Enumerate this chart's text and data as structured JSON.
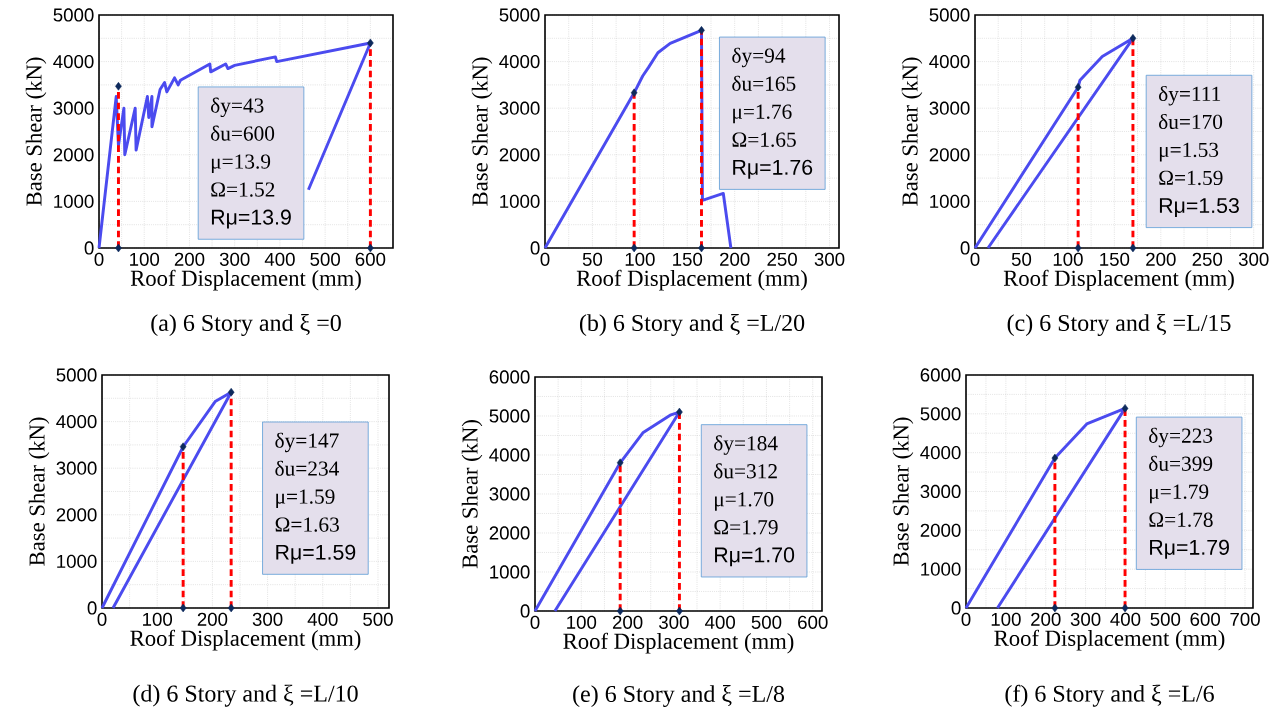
{
  "chart_data": [
    {
      "type": "line",
      "title": "(a) 6 Story and ξ =0",
      "xlabel": "Roof Displacement (mm)",
      "ylabel": "Base Shear (kN)",
      "xlim": [
        0,
        650
      ],
      "ylim": [
        0,
        5000
      ],
      "xticks": [
        0,
        100,
        200,
        300,
        400,
        500,
        600
      ],
      "yticks": [
        0,
        1000,
        2000,
        3000,
        4000,
        5000
      ],
      "grid": true,
      "series": [
        {
          "type": "line",
          "color": "#4b4bef",
          "line_style": "solid",
          "x": [
            0,
            38,
            43,
            55,
            57,
            80,
            82,
            107,
            110,
            117,
            117,
            135,
            145,
            150,
            167,
            175,
            180,
            245,
            247,
            280,
            285,
            300,
            390,
            393,
            600,
            463
          ],
          "values": [
            0,
            3250,
            2200,
            3000,
            2000,
            3000,
            2100,
            3250,
            2800,
            3250,
            2600,
            3400,
            3550,
            3350,
            3650,
            3500,
            3600,
            3950,
            3780,
            3950,
            3850,
            3920,
            4100,
            4000,
            4400,
            1250
          ]
        },
        {
          "type": "line",
          "color": "#ff0000",
          "line_style": "dashed",
          "x": [
            43,
            43
          ],
          "values": [
            0,
            3470
          ]
        },
        {
          "type": "line",
          "color": "#ff0000",
          "line_style": "dashed",
          "x": [
            600,
            600
          ],
          "values": [
            0,
            4400
          ]
        },
        {
          "type": "scatter",
          "color": "#0d2a5c",
          "marker": "diamond",
          "x": [
            43,
            600,
            43,
            600
          ],
          "values": [
            0,
            0,
            3470,
            4400
          ]
        }
      ],
      "annotations": [
        "δy=43",
        "δu=600",
        "μ=13.9",
        "Ω=1.52",
        "Rμ=13.9"
      ]
    },
    {
      "type": "line",
      "title": "(b) 6 Story and ξ =L/20",
      "xlabel": "Roof Displacement (mm)",
      "ylabel": "Base Shear (kN)",
      "xlim": [
        0,
        310
      ],
      "ylim": [
        0,
        5000
      ],
      "xticks": [
        0,
        50,
        100,
        150,
        200,
        250,
        300
      ],
      "yticks": [
        0,
        1000,
        2000,
        3000,
        4000,
        5000
      ],
      "grid": true,
      "series": [
        {
          "type": "line",
          "color": "#4b4bef",
          "line_style": "solid",
          "x": [
            0,
            94,
            103,
            109,
            119,
            132,
            165,
            166,
            188,
            196
          ],
          "values": [
            0,
            3330,
            3690,
            3870,
            4190,
            4390,
            4670,
            1020,
            1170,
            0
          ]
        },
        {
          "type": "line",
          "color": "#ff0000",
          "line_style": "dashed",
          "x": [
            94,
            94
          ],
          "values": [
            0,
            3330
          ]
        },
        {
          "type": "line",
          "color": "#ff0000",
          "line_style": "dashed",
          "x": [
            165,
            165
          ],
          "values": [
            0,
            4670
          ]
        },
        {
          "type": "scatter",
          "color": "#0d2a5c",
          "marker": "diamond",
          "x": [
            94,
            165,
            94,
            165
          ],
          "values": [
            0,
            0,
            3330,
            4670
          ]
        }
      ],
      "annotations": [
        "δy=94",
        "δu=165",
        "μ=1.76",
        "Ω=1.65",
        "Rμ=1.76"
      ]
    },
    {
      "type": "line",
      "title": "(c) 6 Story and ξ =L/15",
      "xlabel": "Roof Displacement (mm)",
      "ylabel": "Base Shear (kN)",
      "xlim": [
        0,
        310
      ],
      "ylim": [
        0,
        5000
      ],
      "xticks": [
        0,
        50,
        100,
        150,
        200,
        250,
        300
      ],
      "yticks": [
        0,
        1000,
        2000,
        3000,
        4000,
        5000
      ],
      "grid": true,
      "series": [
        {
          "type": "line",
          "color": "#4b4bef",
          "line_style": "solid",
          "x": [
            0,
            111,
            113,
            137,
            170,
            14
          ],
          "values": [
            0,
            3450,
            3600,
            4110,
            4500,
            0
          ]
        },
        {
          "type": "line",
          "color": "#ff0000",
          "line_style": "dashed",
          "x": [
            111,
            111
          ],
          "values": [
            0,
            3450
          ]
        },
        {
          "type": "line",
          "color": "#ff0000",
          "line_style": "dashed",
          "x": [
            170,
            170
          ],
          "values": [
            0,
            4500
          ]
        },
        {
          "type": "scatter",
          "color": "#0d2a5c",
          "marker": "diamond",
          "x": [
            111,
            170,
            111,
            170
          ],
          "values": [
            0,
            0,
            3450,
            4500
          ]
        }
      ],
      "annotations": [
        "δy=111",
        "δu=170",
        "μ=1.53",
        "Ω=1.59",
        "Rμ=1.53"
      ]
    },
    {
      "type": "line",
      "title": "(d) 6 Story and ξ =L/10",
      "xlabel": "Roof Displacement (mm)",
      "ylabel": "Base Shear (kN)",
      "xlim": [
        0,
        520
      ],
      "ylim": [
        0,
        5000
      ],
      "xticks": [
        0,
        100,
        200,
        300,
        400,
        500
      ],
      "yticks": [
        0,
        1000,
        2000,
        3000,
        4000,
        5000
      ],
      "grid": true,
      "series": [
        {
          "type": "line",
          "color": "#4b4bef",
          "line_style": "solid",
          "x": [
            0,
            147,
            205,
            234,
            20
          ],
          "values": [
            0,
            3460,
            4430,
            4630,
            0
          ]
        },
        {
          "type": "line",
          "color": "#ff0000",
          "line_style": "dashed",
          "x": [
            147,
            147
          ],
          "values": [
            0,
            3460
          ]
        },
        {
          "type": "line",
          "color": "#ff0000",
          "line_style": "dashed",
          "x": [
            234,
            234
          ],
          "values": [
            0,
            4630
          ]
        },
        {
          "type": "scatter",
          "color": "#0d2a5c",
          "marker": "diamond",
          "x": [
            147,
            234,
            147,
            234
          ],
          "values": [
            0,
            0,
            3460,
            4630
          ]
        }
      ],
      "annotations": [
        "δy=147",
        "δu=234",
        "μ=1.59",
        "Ω=1.63",
        "Rμ=1.59"
      ]
    },
    {
      "type": "line",
      "title": "(e) 6 Story and ξ =L/8",
      "xlabel": "Roof Displacement (mm)",
      "ylabel": "Base Shear (kN)",
      "xlim": [
        0,
        620
      ],
      "ylim": [
        0,
        6000
      ],
      "xticks": [
        0,
        100,
        200,
        300,
        400,
        500,
        600
      ],
      "yticks": [
        0,
        1000,
        2000,
        3000,
        4000,
        5000,
        6000
      ],
      "grid": true,
      "series": [
        {
          "type": "line",
          "color": "#4b4bef",
          "line_style": "solid",
          "x": [
            0,
            184,
            233,
            292,
            312,
            43
          ],
          "values": [
            0,
            3800,
            4570,
            5020,
            5100,
            0
          ]
        },
        {
          "type": "line",
          "color": "#ff0000",
          "line_style": "dashed",
          "x": [
            184,
            184
          ],
          "values": [
            0,
            3800
          ]
        },
        {
          "type": "line",
          "color": "#ff0000",
          "line_style": "dashed",
          "x": [
            312,
            312
          ],
          "values": [
            0,
            5100
          ]
        },
        {
          "type": "scatter",
          "color": "#0d2a5c",
          "marker": "diamond",
          "x": [
            184,
            312,
            184,
            312
          ],
          "values": [
            0,
            0,
            3800,
            5100
          ]
        }
      ],
      "annotations": [
        "δy=184",
        "δu=312",
        "μ=1.70",
        "Ω=1.79",
        "Rμ=1.70"
      ]
    },
    {
      "type": "line",
      "title": "(f) 6 Story and ξ =L/6",
      "xlabel": "Roof Displacement (mm)",
      "ylabel": "Base Shear (kN)",
      "xlim": [
        0,
        720
      ],
      "ylim": [
        0,
        6000
      ],
      "xticks": [
        0,
        100,
        200,
        300,
        400,
        500,
        600,
        700
      ],
      "yticks": [
        0,
        1000,
        2000,
        3000,
        4000,
        5000,
        6000
      ],
      "grid": true,
      "series": [
        {
          "type": "line",
          "color": "#4b4bef",
          "line_style": "solid",
          "x": [
            0,
            223,
            303,
            399,
            79
          ],
          "values": [
            0,
            3860,
            4740,
            5140,
            0
          ]
        },
        {
          "type": "line",
          "color": "#ff0000",
          "line_style": "dashed",
          "x": [
            223,
            223
          ],
          "values": [
            0,
            3860
          ]
        },
        {
          "type": "line",
          "color": "#ff0000",
          "line_style": "dashed",
          "x": [
            399,
            399
          ],
          "values": [
            0,
            5140
          ]
        },
        {
          "type": "scatter",
          "color": "#0d2a5c",
          "marker": "diamond",
          "x": [
            223,
            399,
            223,
            399
          ],
          "values": [
            0,
            0,
            3860,
            5140
          ]
        }
      ],
      "annotations": [
        "δy=223",
        "δu=399",
        "μ=1.79",
        "Ω=1.78",
        "Rμ=1.79"
      ]
    }
  ]
}
